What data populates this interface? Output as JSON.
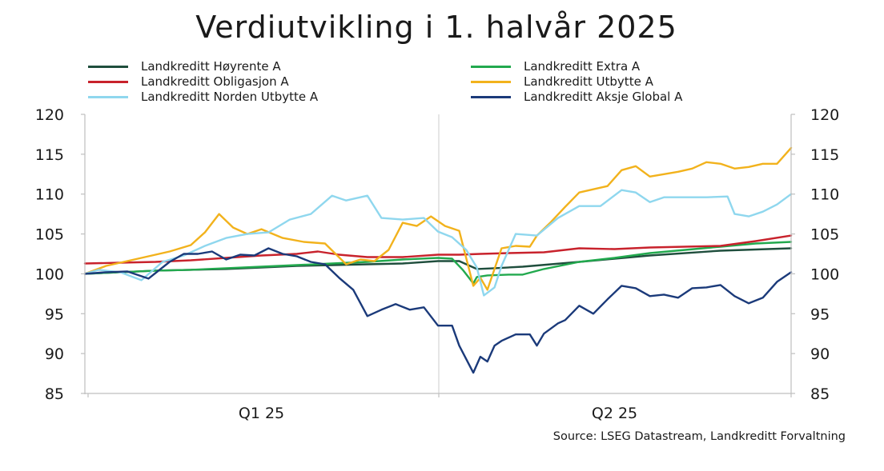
{
  "chart_data": {
    "type": "line",
    "title": "Verdiutvikling i 1. halvår 2025",
    "source": "Source: LSEG Datastream, Landkreditt Forvaltning",
    "categories": [
      "Q1 25",
      "Q2 25"
    ],
    "ylim": [
      85,
      120
    ],
    "yticks": [
      85,
      90,
      95,
      100,
      105,
      110,
      115,
      120
    ],
    "yticks_right": [
      85,
      90,
      95,
      100,
      105,
      110,
      115,
      120
    ],
    "grid": false,
    "legend_position": "top",
    "x_range": [
      0,
      1
    ],
    "series": [
      {
        "name": "Landkreditt Høyrente A",
        "color": "#1f4e3d",
        "x": [
          0,
          0.05,
          0.1,
          0.15,
          0.2,
          0.25,
          0.3,
          0.35,
          0.4,
          0.45,
          0.5,
          0.53,
          0.555,
          0.58,
          0.62,
          0.7,
          0.8,
          0.9,
          1.0
        ],
        "values": [
          100.0,
          100.2,
          100.4,
          100.5,
          100.6,
          100.8,
          101.0,
          101.1,
          101.2,
          101.3,
          101.6,
          101.6,
          100.6,
          100.7,
          100.9,
          101.5,
          102.3,
          102.9,
          103.2
        ]
      },
      {
        "name": "Landkreditt Extra A",
        "color": "#22a94e",
        "x": [
          0,
          0.05,
          0.1,
          0.15,
          0.2,
          0.25,
          0.3,
          0.35,
          0.4,
          0.45,
          0.5,
          0.52,
          0.535,
          0.55,
          0.555,
          0.57,
          0.6,
          0.62,
          0.65,
          0.7,
          0.75,
          0.8,
          0.85,
          0.9,
          0.95,
          1.0
        ],
        "values": [
          100.0,
          100.2,
          100.4,
          100.5,
          100.7,
          100.9,
          101.1,
          101.3,
          101.5,
          101.8,
          102.0,
          101.9,
          100.5,
          98.8,
          99.6,
          99.8,
          99.9,
          99.9,
          100.6,
          101.5,
          102.0,
          102.6,
          103.0,
          103.4,
          103.8,
          104.0
        ]
      },
      {
        "name": "Landkreditt Obligasjon A",
        "color": "#c8222c",
        "x": [
          0,
          0.05,
          0.1,
          0.15,
          0.2,
          0.25,
          0.3,
          0.33,
          0.36,
          0.4,
          0.45,
          0.5,
          0.53,
          0.56,
          0.6,
          0.65,
          0.7,
          0.75,
          0.8,
          0.85,
          0.9,
          0.95,
          1.0
        ],
        "values": [
          101.3,
          101.4,
          101.5,
          101.7,
          102.0,
          102.3,
          102.5,
          102.8,
          102.4,
          102.1,
          102.1,
          102.4,
          102.4,
          102.5,
          102.6,
          102.7,
          103.2,
          103.1,
          103.3,
          103.4,
          103.5,
          104.1,
          104.8
        ]
      },
      {
        "name": "Landkreditt Utbytte A",
        "color": "#f2b21c",
        "x": [
          0,
          0.03,
          0.06,
          0.09,
          0.12,
          0.15,
          0.17,
          0.19,
          0.21,
          0.23,
          0.25,
          0.28,
          0.31,
          0.34,
          0.37,
          0.39,
          0.41,
          0.43,
          0.45,
          0.47,
          0.49,
          0.51,
          0.53,
          0.55,
          0.56,
          0.57,
          0.59,
          0.61,
          0.63,
          0.64,
          0.66,
          0.68,
          0.7,
          0.72,
          0.74,
          0.76,
          0.78,
          0.8,
          0.82,
          0.84,
          0.86,
          0.88,
          0.9,
          0.92,
          0.94,
          0.96,
          0.98,
          1.0
        ],
        "values": [
          100.0,
          101.0,
          101.6,
          102.2,
          102.8,
          103.6,
          105.2,
          107.5,
          105.8,
          105.0,
          105.6,
          104.5,
          104.0,
          103.8,
          101.2,
          101.8,
          101.6,
          103.0,
          106.4,
          106.0,
          107.2,
          106.0,
          105.4,
          98.5,
          99.5,
          98.0,
          103.2,
          103.5,
          103.4,
          104.8,
          106.5,
          108.4,
          110.2,
          110.6,
          111.0,
          113.0,
          113.5,
          112.2,
          112.5,
          112.8,
          113.2,
          114.0,
          113.8,
          113.2,
          113.4,
          113.8,
          113.8,
          115.8
        ]
      },
      {
        "name": "Landkreditt Norden Utbytte A",
        "color": "#8fd7ee",
        "x": [
          0,
          0.02,
          0.05,
          0.08,
          0.11,
          0.14,
          0.17,
          0.2,
          0.23,
          0.26,
          0.29,
          0.32,
          0.35,
          0.37,
          0.4,
          0.42,
          0.45,
          0.48,
          0.5,
          0.52,
          0.54,
          0.555,
          0.565,
          0.58,
          0.59,
          0.61,
          0.64,
          0.67,
          0.7,
          0.73,
          0.76,
          0.78,
          0.8,
          0.82,
          0.85,
          0.88,
          0.91,
          0.92,
          0.94,
          0.96,
          0.98,
          1.0
        ],
        "values": [
          100.0,
          100.5,
          100.2,
          99.2,
          101.5,
          102.3,
          103.5,
          104.5,
          105.0,
          105.2,
          106.8,
          107.5,
          109.8,
          109.2,
          109.8,
          107.0,
          106.8,
          107.0,
          105.3,
          104.6,
          103.0,
          100.8,
          97.3,
          98.3,
          101.0,
          105.0,
          104.8,
          107.0,
          108.5,
          108.5,
          110.5,
          110.2,
          109.0,
          109.6,
          109.6,
          109.6,
          109.7,
          107.5,
          107.2,
          107.8,
          108.7,
          110.0
        ]
      },
      {
        "name": "Landkreditt Aksje Global A",
        "color": "#1b3a7a",
        "x": [
          0,
          0.03,
          0.06,
          0.09,
          0.12,
          0.14,
          0.16,
          0.18,
          0.2,
          0.22,
          0.24,
          0.26,
          0.28,
          0.3,
          0.32,
          0.34,
          0.36,
          0.38,
          0.4,
          0.42,
          0.44,
          0.46,
          0.48,
          0.5,
          0.52,
          0.53,
          0.55,
          0.56,
          0.57,
          0.58,
          0.59,
          0.61,
          0.63,
          0.64,
          0.65,
          0.67,
          0.68,
          0.7,
          0.72,
          0.74,
          0.76,
          0.78,
          0.8,
          0.82,
          0.84,
          0.86,
          0.88,
          0.9,
          0.92,
          0.94,
          0.96,
          0.98,
          1.0
        ],
        "values": [
          100.0,
          100.2,
          100.3,
          99.4,
          101.5,
          102.5,
          102.5,
          102.8,
          101.8,
          102.4,
          102.3,
          103.2,
          102.5,
          102.2,
          101.5,
          101.2,
          99.5,
          98.0,
          94.7,
          95.5,
          96.2,
          95.5,
          95.8,
          93.5,
          93.5,
          91.0,
          87.6,
          89.6,
          89.0,
          91.0,
          91.6,
          92.4,
          92.4,
          91.0,
          92.5,
          93.8,
          94.2,
          96.0,
          95.0,
          96.8,
          98.5,
          98.2,
          97.2,
          97.4,
          97.0,
          98.2,
          98.3,
          98.6,
          97.2,
          96.3,
          97.0,
          99.0,
          100.2
        ]
      }
    ]
  }
}
